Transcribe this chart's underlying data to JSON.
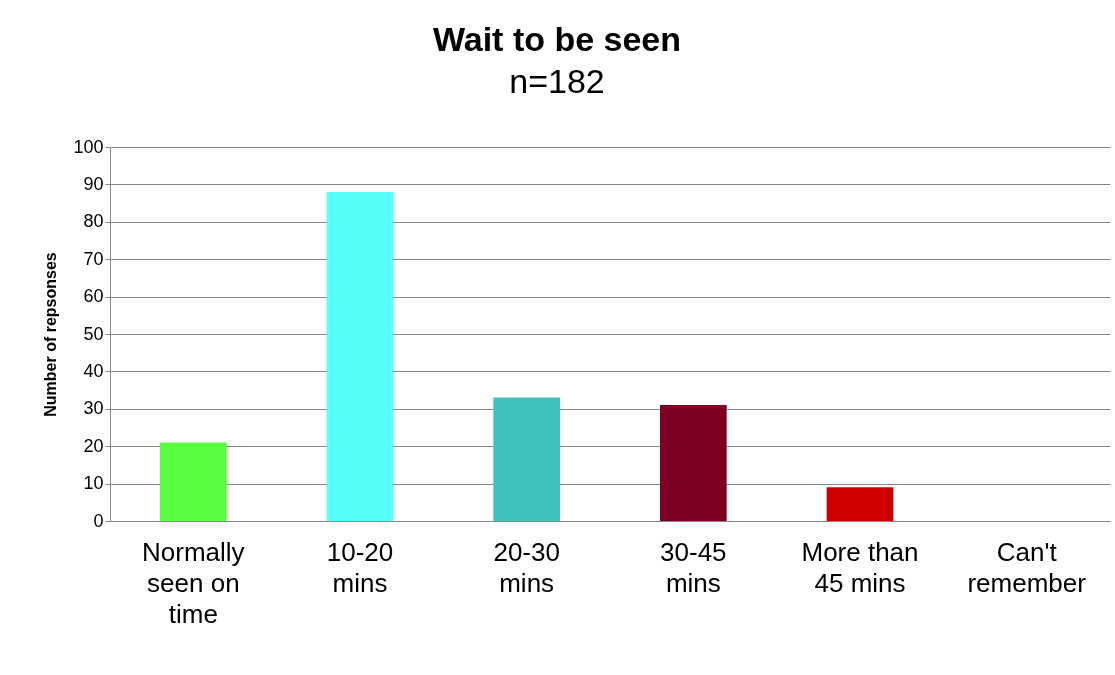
{
  "chart_data": {
    "type": "bar",
    "title": "Wait to be seen",
    "subtitle": "n=182",
    "ylabel": "Number of repsonses",
    "categories": [
      "Normally seen on time",
      "10-20 mins",
      "20-30 mins",
      "30-45 mins",
      "More than 45 mins",
      "Can't remember"
    ],
    "values": [
      21,
      88,
      33,
      31,
      9,
      0
    ],
    "colors": [
      "#57ff3e",
      "#55fff5",
      "#3fc4bd",
      "#7b0022",
      "#cc0000",
      "#888888"
    ],
    "ylim": [
      0,
      100
    ],
    "yticks": [
      0,
      10,
      20,
      30,
      40,
      50,
      60,
      70,
      80,
      90,
      100
    ],
    "grid": "y"
  }
}
